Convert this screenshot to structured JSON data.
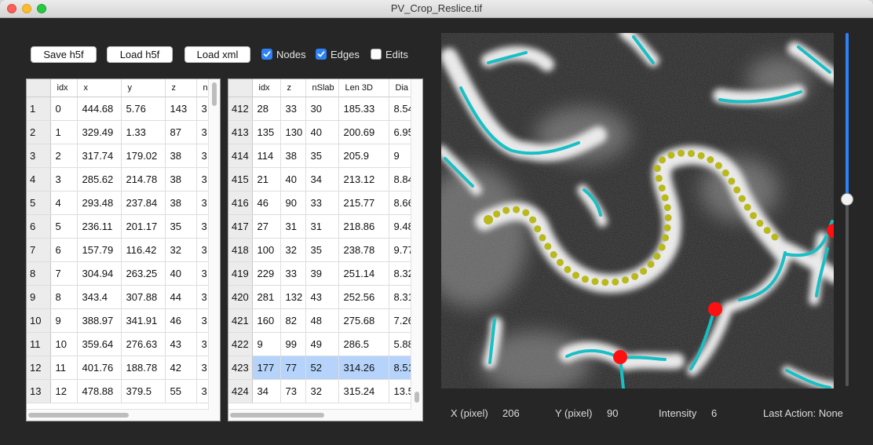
{
  "window": {
    "title": "PV_Crop_Reslice.tif"
  },
  "toolbar": {
    "save_h5f": "Save h5f",
    "load_h5f": "Load h5f",
    "load_xml": "Load xml",
    "nodes": {
      "label": "Nodes",
      "checked": true
    },
    "edges": {
      "label": "Edges",
      "checked": true
    },
    "edits": {
      "label": "Edits",
      "checked": false
    }
  },
  "nodes_table": {
    "headers": [
      "",
      "idx",
      "x",
      "y",
      "z",
      "n"
    ],
    "rows": [
      [
        "1",
        "0",
        "444.68",
        "5.76",
        "143",
        "3"
      ],
      [
        "2",
        "1",
        "329.49",
        "1.33",
        "87",
        "3"
      ],
      [
        "3",
        "2",
        "317.74",
        "179.02",
        "38",
        "3"
      ],
      [
        "4",
        "3",
        "285.62",
        "214.78",
        "38",
        "3"
      ],
      [
        "5",
        "4",
        "293.48",
        "237.84",
        "38",
        "3"
      ],
      [
        "6",
        "5",
        "236.11",
        "201.17",
        "35",
        "3"
      ],
      [
        "7",
        "6",
        "157.79",
        "116.42",
        "32",
        "3"
      ],
      [
        "8",
        "7",
        "304.94",
        "263.25",
        "40",
        "3"
      ],
      [
        "9",
        "8",
        "343.4",
        "307.88",
        "44",
        "3"
      ],
      [
        "10",
        "9",
        "388.97",
        "341.91",
        "46",
        "3"
      ],
      [
        "11",
        "10",
        "359.64",
        "276.63",
        "43",
        "3"
      ],
      [
        "12",
        "11",
        "401.76",
        "188.78",
        "42",
        "3"
      ],
      [
        "13",
        "12",
        "478.88",
        "379.5",
        "55",
        "3"
      ]
    ]
  },
  "edges_table": {
    "headers": [
      "",
      "idx",
      "z",
      "nSlab",
      "Len 3D",
      "Dia"
    ],
    "selected_row": "423",
    "rows": [
      [
        "412",
        "28",
        "33",
        "30",
        "185.33",
        "8.54"
      ],
      [
        "413",
        "135",
        "130",
        "40",
        "200.69",
        "6.95"
      ],
      [
        "414",
        "114",
        "38",
        "35",
        "205.9",
        "9"
      ],
      [
        "415",
        "21",
        "40",
        "34",
        "213.12",
        "8.84"
      ],
      [
        "416",
        "46",
        "90",
        "33",
        "215.77",
        "8.66"
      ],
      [
        "417",
        "27",
        "31",
        "31",
        "218.86",
        "9.48"
      ],
      [
        "418",
        "100",
        "32",
        "35",
        "238.78",
        "9.77"
      ],
      [
        "419",
        "229",
        "33",
        "39",
        "251.14",
        "8.32"
      ],
      [
        "420",
        "281",
        "132",
        "43",
        "252.56",
        "8.31"
      ],
      [
        "421",
        "160",
        "82",
        "48",
        "275.68",
        "7.26"
      ],
      [
        "422",
        "9",
        "99",
        "49",
        "286.5",
        "5.88"
      ],
      [
        "423",
        "177",
        "77",
        "52",
        "314.26",
        "8.51"
      ],
      [
        "424",
        "34",
        "73",
        "32",
        "315.24",
        "13.5"
      ]
    ]
  },
  "colors": {
    "edge": "#18bfc4",
    "slab": "#b9b81c",
    "node": "#ff1010",
    "accent": "#2e82f7"
  },
  "slider": {
    "value_fraction": 0.53
  },
  "status": {
    "x_label": "X (pixel)",
    "x_value": "206",
    "y_label": "Y (pixel)",
    "y_value": "90",
    "intensity_label": "Intensity",
    "intensity_value": "6",
    "last_action": "Last Action: None"
  }
}
